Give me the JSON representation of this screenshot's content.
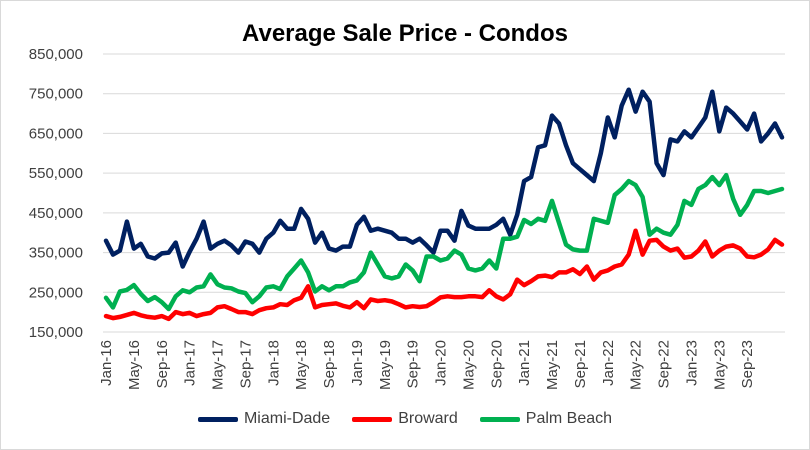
{
  "chart_data": {
    "type": "line",
    "title": "Average Sale Price - Condos",
    "xlabel": "",
    "ylabel": "",
    "ylim": [
      150000,
      850000
    ],
    "yticks": [
      150000,
      250000,
      350000,
      450000,
      550000,
      650000,
      750000,
      850000
    ],
    "ytick_labels": [
      "150,000",
      "250,000",
      "350,000",
      "450,000",
      "550,000",
      "650,000",
      "750,000",
      "850,000"
    ],
    "x_labels": [
      "Jan-16",
      "May-16",
      "Sep-16",
      "Jan-17",
      "May-17",
      "Sep-17",
      "Jan-18",
      "May-18",
      "Sep-18",
      "Jan-19",
      "May-19",
      "Sep-19",
      "Jan-20",
      "May-20",
      "Sep-20",
      "Jan-21",
      "May-21",
      "Sep-21",
      "Jan-22",
      "May-22",
      "Sep-22",
      "Jan-23",
      "May-23",
      "Sep-23"
    ],
    "x_label_step": 4,
    "grid": "horizontal",
    "legend_position": "bottom",
    "series": [
      {
        "name": "Miami-Dade",
        "color": "#002060",
        "values": [
          380000,
          345000,
          355000,
          428000,
          360000,
          372000,
          340000,
          335000,
          348000,
          350000,
          375000,
          315000,
          352000,
          385000,
          428000,
          360000,
          372000,
          380000,
          368000,
          350000,
          378000,
          372000,
          350000,
          385000,
          400000,
          430000,
          410000,
          410000,
          460000,
          435000,
          375000,
          400000,
          360000,
          355000,
          365000,
          365000,
          420000,
          440000,
          405000,
          410000,
          405000,
          400000,
          385000,
          385000,
          375000,
          385000,
          368000,
          350000,
          405000,
          405000,
          380000,
          455000,
          418000,
          410000,
          410000,
          410000,
          420000,
          435000,
          395000,
          445000,
          530000,
          540000,
          615000,
          620000,
          695000,
          675000,
          620000,
          575000,
          560000,
          545000,
          530000,
          600000,
          690000,
          640000,
          720000,
          760000,
          705000,
          755000,
          730000,
          575000,
          545000,
          635000,
          630000,
          655000,
          640000,
          665000,
          690000,
          755000,
          655000,
          715000,
          700000,
          680000,
          660000,
          700000,
          630000,
          650000,
          675000,
          640000
        ]
      },
      {
        "name": "Broward",
        "color": "#ff0000",
        "values": [
          190000,
          185000,
          188000,
          193000,
          198000,
          192000,
          188000,
          186000,
          190000,
          183000,
          200000,
          195000,
          198000,
          190000,
          195000,
          198000,
          212000,
          215000,
          208000,
          200000,
          200000,
          195000,
          205000,
          210000,
          212000,
          220000,
          218000,
          230000,
          236000,
          265000,
          212000,
          218000,
          220000,
          222000,
          216000,
          212000,
          225000,
          210000,
          232000,
          228000,
          230000,
          227000,
          220000,
          212000,
          215000,
          213000,
          215000,
          225000,
          237000,
          240000,
          238000,
          238000,
          240000,
          240000,
          238000,
          255000,
          240000,
          232000,
          245000,
          282000,
          268000,
          278000,
          290000,
          292000,
          288000,
          300000,
          300000,
          308000,
          296000,
          315000,
          282000,
          300000,
          305000,
          315000,
          320000,
          345000,
          405000,
          345000,
          380000,
          382000,
          365000,
          355000,
          360000,
          337000,
          340000,
          355000,
          378000,
          340000,
          355000,
          365000,
          368000,
          360000,
          340000,
          338000,
          345000,
          358000,
          382000,
          370000
        ]
      },
      {
        "name": "Palm Beach",
        "color": "#00b050",
        "values": [
          236000,
          212000,
          252000,
          256000,
          268000,
          246000,
          228000,
          238000,
          225000,
          208000,
          240000,
          255000,
          250000,
          262000,
          265000,
          295000,
          270000,
          262000,
          260000,
          252000,
          248000,
          225000,
          240000,
          262000,
          265000,
          258000,
          290000,
          310000,
          330000,
          300000,
          252000,
          265000,
          255000,
          265000,
          265000,
          275000,
          280000,
          300000,
          350000,
          320000,
          290000,
          285000,
          290000,
          320000,
          305000,
          278000,
          340000,
          340000,
          330000,
          335000,
          355000,
          345000,
          310000,
          305000,
          310000,
          330000,
          310000,
          385000,
          385000,
          390000,
          432000,
          422000,
          435000,
          430000,
          480000,
          425000,
          370000,
          358000,
          355000,
          355000,
          435000,
          430000,
          425000,
          495000,
          510000,
          530000,
          520000,
          490000,
          395000,
          410000,
          400000,
          395000,
          420000,
          480000,
          470000,
          510000,
          520000,
          540000,
          520000,
          545000,
          485000,
          445000,
          470000,
          505000,
          505000,
          500000,
          505000,
          510000
        ]
      }
    ]
  }
}
